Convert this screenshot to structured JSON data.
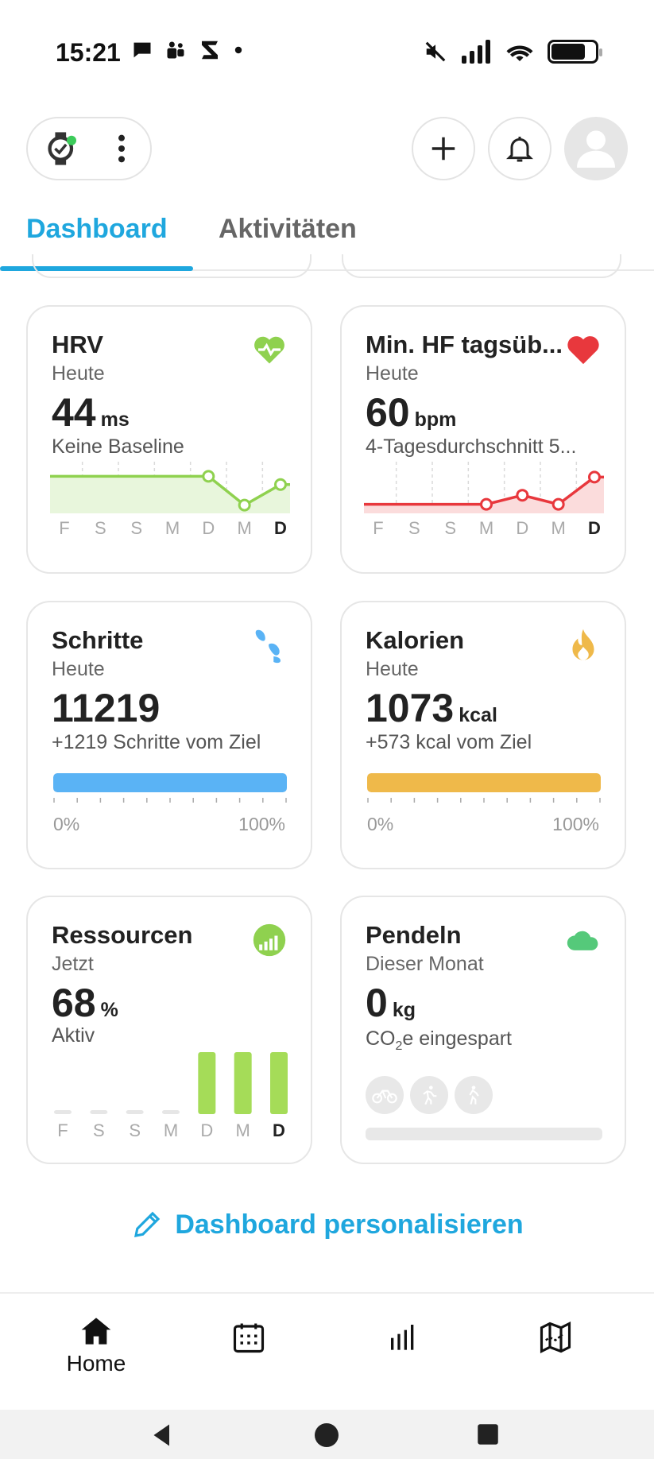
{
  "status_bar": {
    "time": "15:21"
  },
  "tabs": [
    {
      "label": "Dashboard",
      "active": true
    },
    {
      "label": "Aktivitäten",
      "active": false
    }
  ],
  "colors": {
    "accent": "#1fa7de",
    "hrv_green": "#8fd14f",
    "hr_red": "#e8383d",
    "steps_blue": "#5ab3f5",
    "calories_yellow": "#efb94a",
    "resources_green": "#a5dc58",
    "commute_green": "#55c97a"
  },
  "cards": {
    "hrv": {
      "title": "HRV",
      "subtitle": "Heute",
      "value": "44",
      "unit": "ms",
      "description": "Keine Baseline",
      "icon": "heart-pulse-icon"
    },
    "min_hr": {
      "title": "Min. HF tagsüb...",
      "subtitle": "Heute",
      "value": "60",
      "unit": "bpm",
      "description": "4-Tagesdurchschnitt 5...",
      "icon": "heart-icon"
    },
    "steps": {
      "title": "Schritte",
      "subtitle": "Heute",
      "value": "11219",
      "unit": "",
      "description": "+1219 Schritte vom Ziel",
      "progress_percent": 100,
      "label_min": "0%",
      "label_max": "100%",
      "icon": "footsteps-icon"
    },
    "calories": {
      "title": "Kalorien",
      "subtitle": "Heute",
      "value": "1073",
      "unit": "kcal",
      "description": "+573 kcal vom Ziel",
      "progress_percent": 100,
      "label_min": "0%",
      "label_max": "100%",
      "icon": "flame-icon"
    },
    "resources": {
      "title": "Ressourcen",
      "subtitle": "Jetzt",
      "value": "68",
      "unit": "%",
      "description": "Aktiv",
      "icon": "resources-gauge-icon"
    },
    "commute": {
      "title": "Pendeln",
      "subtitle": "Dieser Monat",
      "value": "0",
      "unit": "kg",
      "description_prefix": "CO",
      "description_sub": "2",
      "description_suffix": "e eingespart",
      "icons": [
        "bike-icon",
        "run-icon",
        "walk-icon"
      ],
      "icon": "cloud-icon"
    }
  },
  "chart_data": [
    {
      "type": "line",
      "name": "hrv",
      "categories": [
        "F",
        "S",
        "S",
        "M",
        "D",
        "M",
        "D"
      ],
      "values": [
        44,
        44,
        44,
        44,
        44,
        37,
        42
      ],
      "marked_points": [
        4,
        5,
        6
      ],
      "ylim": [
        35,
        46
      ]
    },
    {
      "type": "line",
      "name": "min_hr",
      "categories": [
        "F",
        "S",
        "S",
        "M",
        "D",
        "M",
        "D"
      ],
      "values": [
        57,
        57,
        57,
        57,
        58,
        57,
        60
      ],
      "marked_points": [
        3,
        4,
        5,
        6
      ],
      "ylim": [
        56,
        61
      ]
    },
    {
      "type": "bar",
      "name": "resources",
      "categories": [
        "F",
        "S",
        "S",
        "M",
        "D",
        "M",
        "D"
      ],
      "values": [
        0,
        0,
        0,
        0,
        100,
        100,
        100
      ]
    }
  ],
  "personalize": {
    "label": "Dashboard personalisieren"
  },
  "bottom_nav": [
    {
      "label": "Home",
      "icon": "home-icon",
      "active": true
    },
    {
      "label": "",
      "icon": "calendar-icon",
      "active": false
    },
    {
      "label": "",
      "icon": "stats-bars-icon",
      "active": false
    },
    {
      "label": "",
      "icon": "map-icon",
      "active": false
    }
  ]
}
